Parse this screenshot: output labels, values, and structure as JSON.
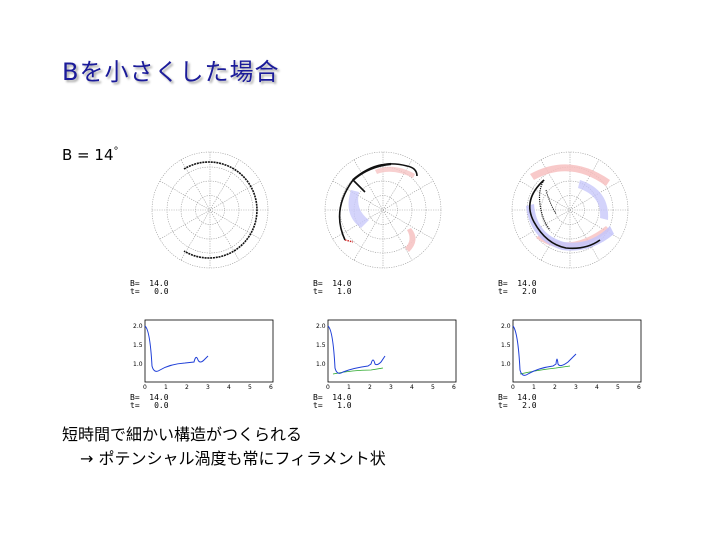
{
  "title": "Bを小さくした場合",
  "param": {
    "text": "B = 14",
    "sup": "°"
  },
  "panels": [
    {
      "polar_label_b": "B=  14.0",
      "polar_label_t": "t=   0.0",
      "ts_label_b": "B=  14.0",
      "ts_label_t": "t=   0.0"
    },
    {
      "polar_label_b": "B=  14.0",
      "polar_label_t": "t=   1.0",
      "ts_label_b": "B=  14.0",
      "ts_label_t": "t=   1.0"
    },
    {
      "polar_label_b": "B=  14.0",
      "polar_label_t": "t=   2.0",
      "ts_label_b": "B=  14.0",
      "ts_label_t": "t=   2.0"
    }
  ],
  "ts_axis": {
    "yticks": [
      "2.0",
      "1.5",
      "1.0"
    ],
    "xticks": [
      "0",
      "1",
      "2",
      "3",
      "4",
      "5",
      "6"
    ]
  },
  "colors": {
    "title": "#1b1b9a",
    "curve": "#1f3fd8",
    "curve2": "#2aa82a",
    "pos": "#f6b9b9",
    "neg": "#b9b9f6"
  },
  "note": {
    "line1": "短時間で細かい構造がつくられる",
    "line2": "→  ポテンシャル渦度も常にフィラメント状"
  }
}
